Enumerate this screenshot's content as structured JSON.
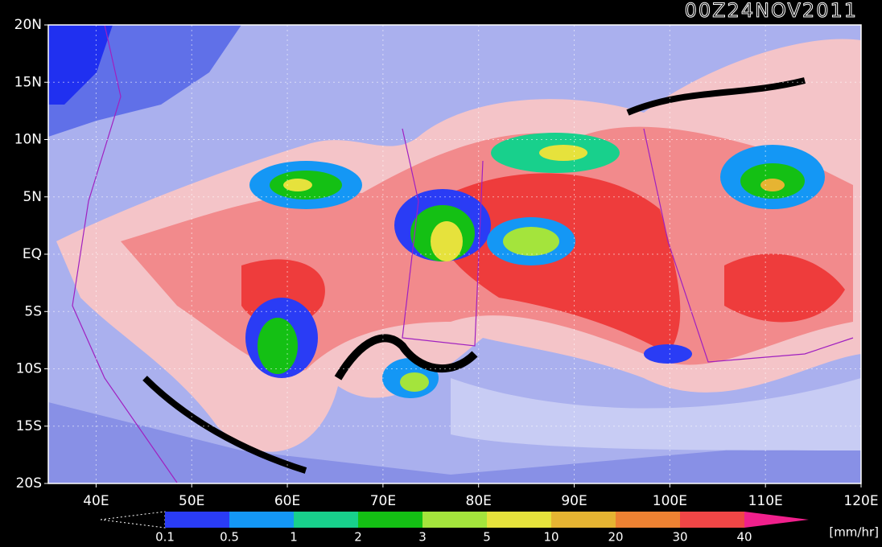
{
  "map": {
    "title": "00Z24NOV2011",
    "lat_ticks": [
      {
        "value": 20,
        "label": "20N"
      },
      {
        "value": 15,
        "label": "15N"
      },
      {
        "value": 10,
        "label": "10N"
      },
      {
        "value": 5,
        "label": "5N"
      },
      {
        "value": 0,
        "label": "EQ"
      },
      {
        "value": -5,
        "label": "5S"
      },
      {
        "value": -10,
        "label": "10S"
      },
      {
        "value": -15,
        "label": "15S"
      },
      {
        "value": -20,
        "label": "20S"
      }
    ],
    "lon_ticks": [
      {
        "value": 40,
        "label": "40E"
      },
      {
        "value": 50,
        "label": "50E"
      },
      {
        "value": 60,
        "label": "60E"
      },
      {
        "value": 70,
        "label": "70E"
      },
      {
        "value": 80,
        "label": "80E"
      },
      {
        "value": 90,
        "label": "90E"
      },
      {
        "value": 100,
        "label": "100E"
      },
      {
        "value": 110,
        "label": "110E"
      },
      {
        "value": 120,
        "label": "120E"
      }
    ],
    "colorbar": {
      "levels": [
        0.1,
        0.5,
        1,
        2,
        3,
        5,
        10,
        20,
        30,
        40
      ],
      "colors": [
        "#2a3cf5",
        "#1497f5",
        "#18d08c",
        "#14c014",
        "#a4e43c",
        "#e6e23c",
        "#e6b432",
        "#ee8232",
        "#f04646"
      ],
      "over_color": "#f0208c",
      "unit": "[mm/hr]"
    }
  }
}
